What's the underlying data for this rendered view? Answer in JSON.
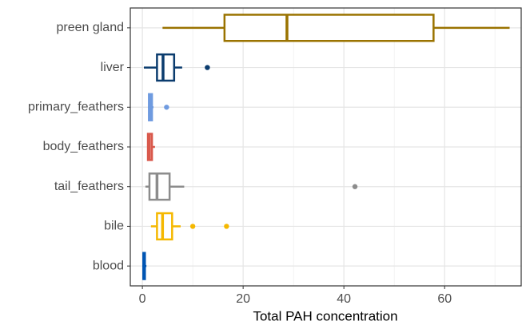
{
  "chart_data": {
    "type": "boxplot",
    "orientation": "horizontal",
    "x_label": "Total PAH concentration",
    "categories": [
      "preen gland",
      "liver",
      "primary_feathers",
      "body_feathers",
      "tail_feathers",
      "bile",
      "blood"
    ],
    "boxes": [
      {
        "color": "#9a7300",
        "min": 4.0,
        "q1": 16.3,
        "median": 28.7,
        "q3": 57.8,
        "max": 72.9,
        "outliers": []
      },
      {
        "color": "#0b3c6e",
        "min": 0.3,
        "q1": 2.9,
        "median": 4.1,
        "q3": 6.3,
        "max": 7.9,
        "outliers": [
          12.9
        ]
      },
      {
        "color": "#6f9be0",
        "min": 1.1,
        "q1": 1.3,
        "median": 1.6,
        "q3": 1.9,
        "max": 2.2,
        "outliers": [
          4.8
        ]
      },
      {
        "color": "#d9594c",
        "min": 1.0,
        "q1": 1.1,
        "median": 1.4,
        "q3": 1.9,
        "max": 2.5,
        "outliers": []
      },
      {
        "color": "#8c8c8c",
        "min": 0.6,
        "q1": 1.4,
        "median": 2.9,
        "q3": 5.4,
        "max": 8.3,
        "outliers": [
          42.2
        ]
      },
      {
        "color": "#f5b800",
        "min": 1.7,
        "q1": 2.9,
        "median": 4.0,
        "q3": 5.9,
        "max": 7.6,
        "outliers": [
          10.0,
          16.7
        ]
      },
      {
        "color": "#0055b3",
        "min": 0.0,
        "q1": 0.2,
        "median": 0.3,
        "q3": 0.5,
        "max": 0.8,
        "outliers": []
      }
    ],
    "xlim": [
      -2.4,
      75.2
    ],
    "xticks": [
      0,
      20,
      40,
      60
    ],
    "minor_xticks": [
      10,
      30,
      50,
      70
    ],
    "grid": true
  }
}
